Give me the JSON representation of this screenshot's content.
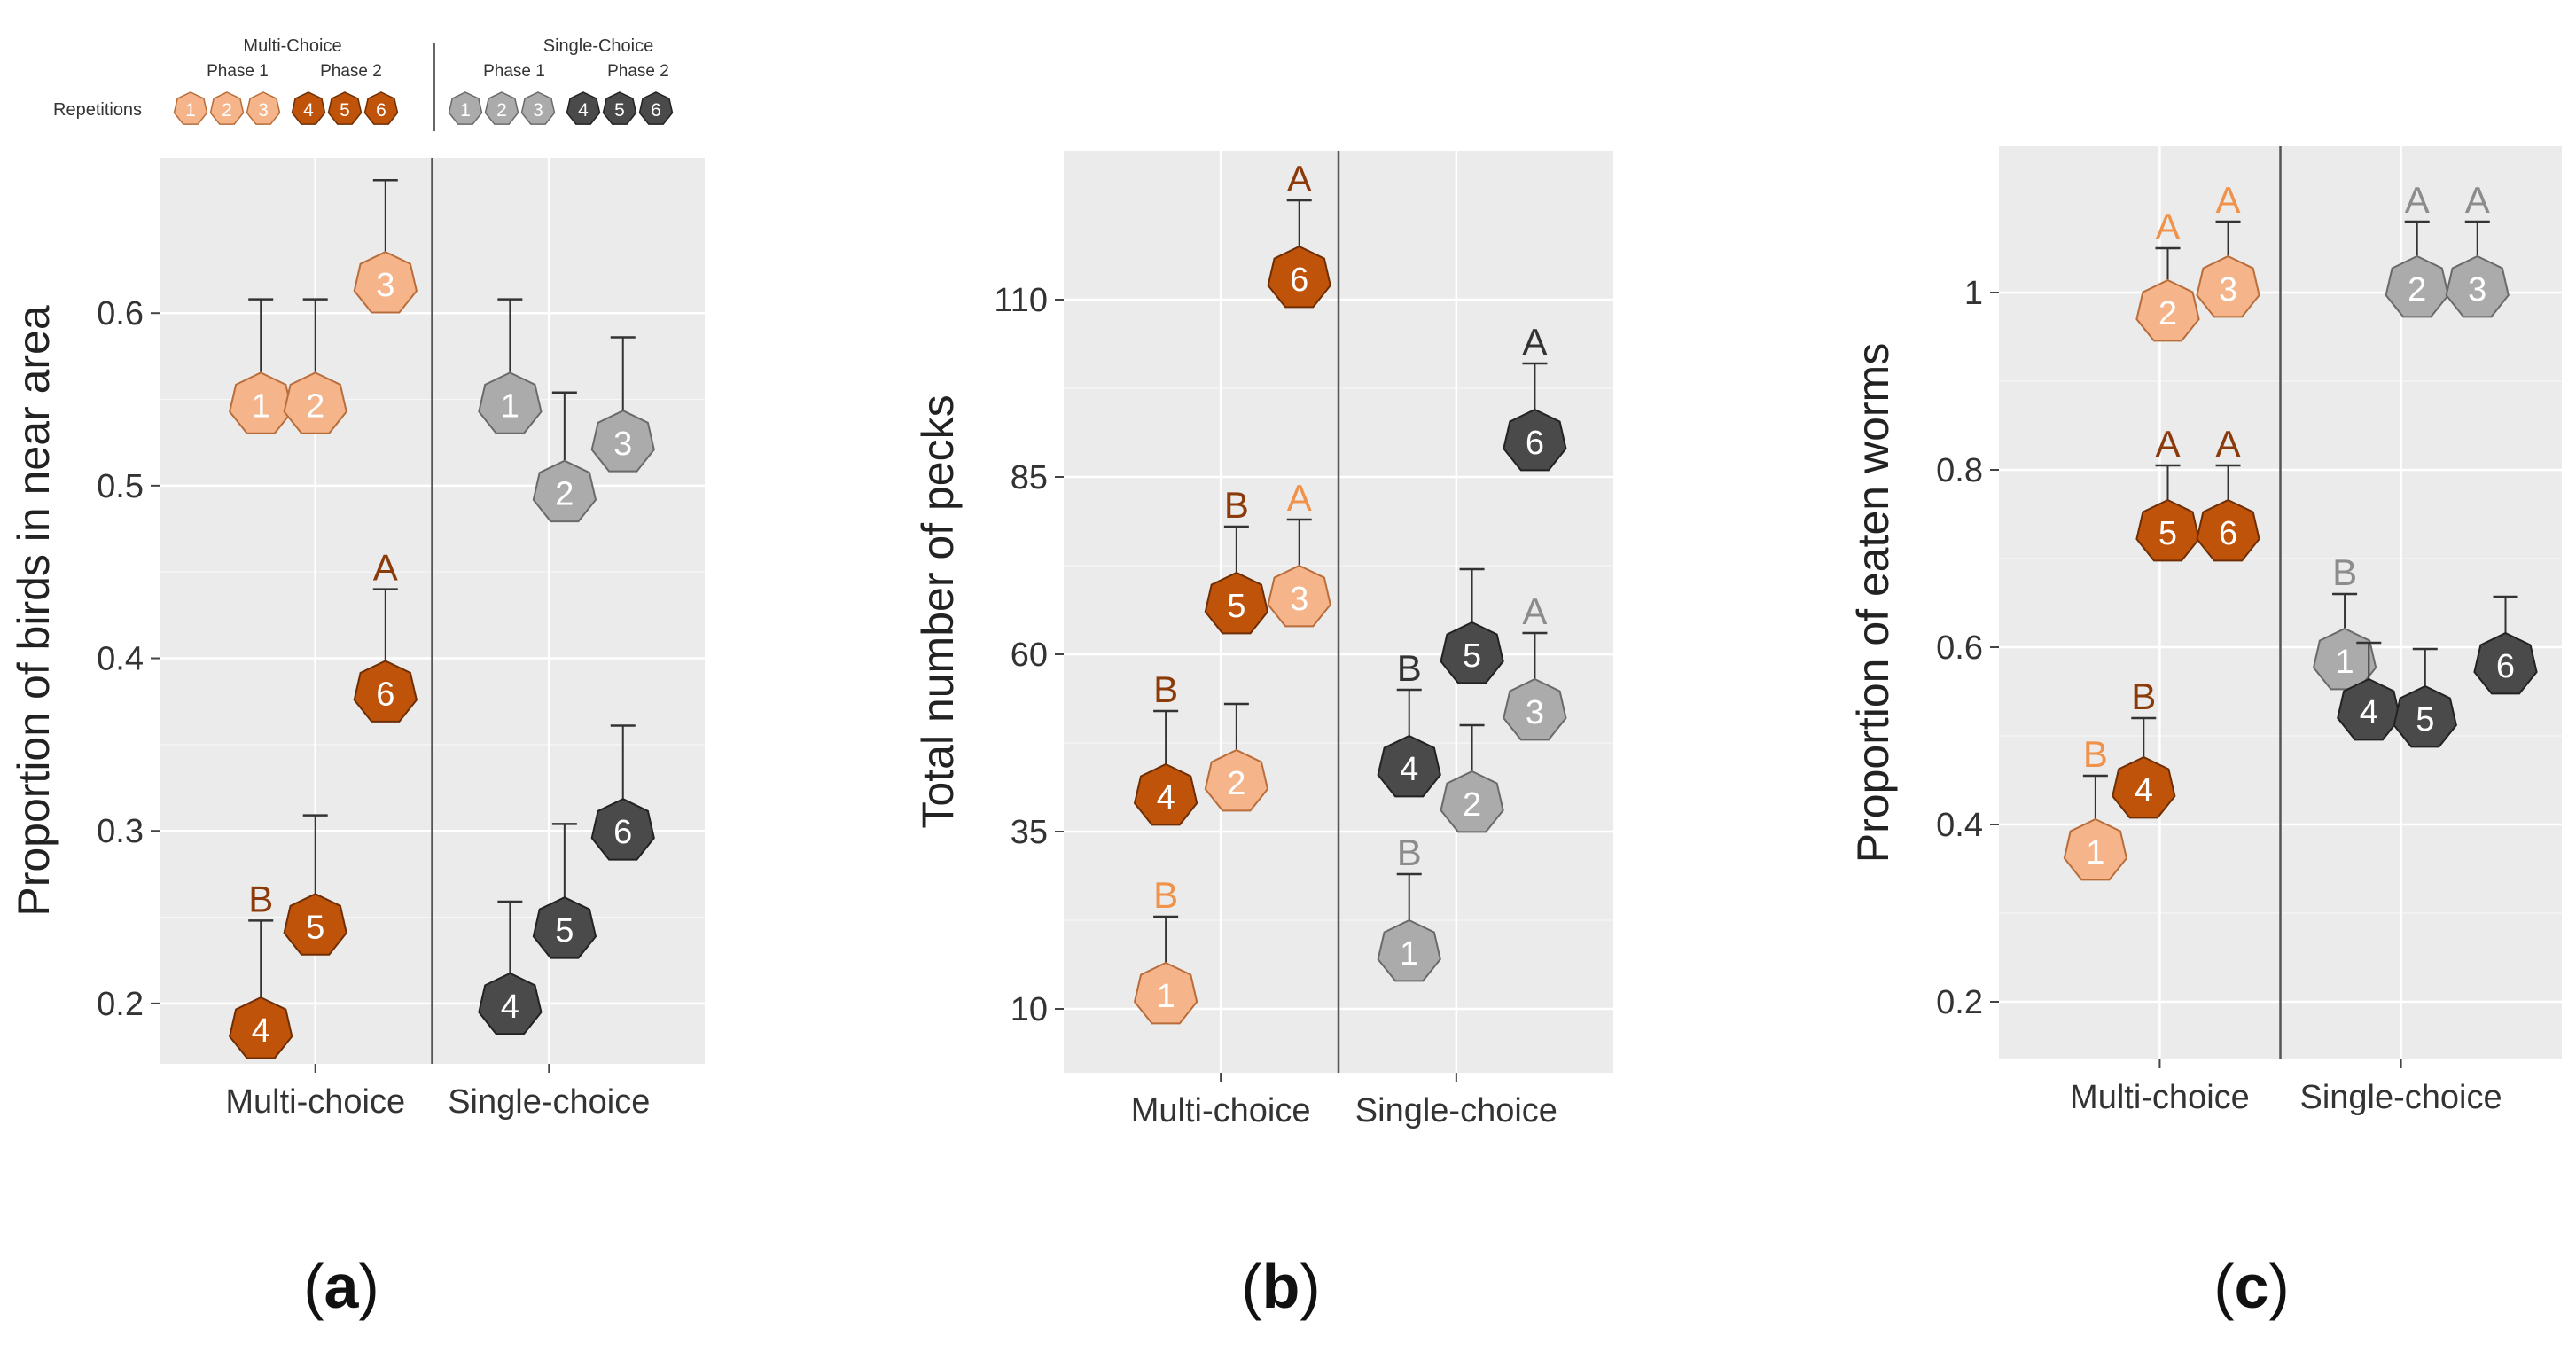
{
  "legend": {
    "row_label": "Repetitions",
    "groups": [
      {
        "title": "Multi-Choice",
        "phases": [
          "Phase 1",
          "Phase 2"
        ],
        "reps": [
          "1",
          "2",
          "3",
          "4",
          "5",
          "6"
        ]
      },
      {
        "title": "Single-Choice",
        "phases": [
          "Phase 1",
          "Phase 2"
        ],
        "reps": [
          "1",
          "2",
          "3",
          "4",
          "5",
          "6"
        ]
      }
    ]
  },
  "colors": {
    "multi_phase1_fill": "#F5B48A",
    "multi_phase2_fill": "#C0530A",
    "single_phase1_fill": "#ABABAB",
    "single_phase2_fill": "#4A4A4A",
    "multi_phase1_letter": "#F0924A",
    "multi_phase2_letter": "#8B3A0A",
    "single_phase1_letter": "#8C8C8C",
    "single_phase2_letter": "#333333",
    "panel_bg": "#EBEBEB",
    "grid": "#FFFFFF"
  },
  "chart_data": [
    {
      "type": "scatter",
      "caption_paren_open": "(",
      "caption_letter": "a",
      "caption_paren_close": ")",
      "ylabel": "Proportion of birds in near area",
      "xlabel": "",
      "categories": [
        "Multi-choice",
        "Single-choice"
      ],
      "ylim": [
        0.165,
        0.69
      ],
      "yticks": [
        0.2,
        0.3,
        0.4,
        0.5,
        0.6
      ],
      "ytick_labels": [
        "0.2",
        "0.3",
        "0.4",
        "0.5",
        "0.6"
      ],
      "grid": true,
      "points": [
        {
          "group": "Multi-choice",
          "rep": "1",
          "x": 1.3,
          "y": 0.547,
          "err_top": 0.608,
          "letter": ""
        },
        {
          "group": "Multi-choice",
          "rep": "2",
          "x": 2.0,
          "y": 0.547,
          "err_top": 0.608,
          "letter": ""
        },
        {
          "group": "Multi-choice",
          "rep": "3",
          "x": 2.9,
          "y": 0.617,
          "err_top": 0.677,
          "letter": ""
        },
        {
          "group": "Multi-choice",
          "rep": "4",
          "x": 1.3,
          "y": 0.185,
          "err_top": 0.248,
          "letter": "B"
        },
        {
          "group": "Multi-choice",
          "rep": "5",
          "x": 2.0,
          "y": 0.245,
          "err_top": 0.309,
          "letter": ""
        },
        {
          "group": "Multi-choice",
          "rep": "6",
          "x": 2.9,
          "y": 0.38,
          "err_top": 0.44,
          "letter": "A"
        },
        {
          "group": "Single-choice",
          "rep": "1",
          "x": 4.5,
          "y": 0.547,
          "err_top": 0.608,
          "letter": ""
        },
        {
          "group": "Single-choice",
          "rep": "2",
          "x": 5.2,
          "y": 0.496,
          "err_top": 0.554,
          "letter": ""
        },
        {
          "group": "Single-choice",
          "rep": "3",
          "x": 5.95,
          "y": 0.525,
          "err_top": 0.586,
          "letter": ""
        },
        {
          "group": "Single-choice",
          "rep": "4",
          "x": 4.5,
          "y": 0.199,
          "err_top": 0.259,
          "letter": ""
        },
        {
          "group": "Single-choice",
          "rep": "5",
          "x": 5.2,
          "y": 0.243,
          "err_top": 0.304,
          "letter": ""
        },
        {
          "group": "Single-choice",
          "rep": "6",
          "x": 5.95,
          "y": 0.3,
          "err_top": 0.361,
          "letter": ""
        }
      ]
    },
    {
      "type": "scatter",
      "caption_paren_open": "(",
      "caption_letter": "b",
      "caption_paren_close": ")",
      "ylabel": "Total number of pecks",
      "xlabel": "",
      "categories": [
        "Multi-choice",
        "Single-choice"
      ],
      "ylim": [
        1,
        131
      ],
      "yticks": [
        10,
        35,
        60,
        85,
        110
      ],
      "ytick_labels": [
        "10",
        "35",
        "60",
        "85",
        "110"
      ],
      "grid": true,
      "points": [
        {
          "group": "Multi-choice",
          "rep": "1",
          "x": 1.3,
          "y": 12,
          "err_top": 23,
          "letter": "B"
        },
        {
          "group": "Multi-choice",
          "rep": "2",
          "x": 2.2,
          "y": 42,
          "err_top": 53,
          "letter": ""
        },
        {
          "group": "Multi-choice",
          "rep": "3",
          "x": 3.0,
          "y": 68,
          "err_top": 79,
          "letter": "A"
        },
        {
          "group": "Multi-choice",
          "rep": "4",
          "x": 1.3,
          "y": 40,
          "err_top": 52,
          "letter": "B"
        },
        {
          "group": "Multi-choice",
          "rep": "5",
          "x": 2.2,
          "y": 67,
          "err_top": 78,
          "letter": "B"
        },
        {
          "group": "Multi-choice",
          "rep": "6",
          "x": 3.0,
          "y": 113,
          "err_top": 124,
          "letter": "A"
        },
        {
          "group": "Single-choice",
          "rep": "1",
          "x": 4.4,
          "y": 18,
          "err_top": 29,
          "letter": "B"
        },
        {
          "group": "Single-choice",
          "rep": "2",
          "x": 5.2,
          "y": 39,
          "err_top": 50,
          "letter": ""
        },
        {
          "group": "Single-choice",
          "rep": "3",
          "x": 6.0,
          "y": 52,
          "err_top": 63,
          "letter": "A"
        },
        {
          "group": "Single-choice",
          "rep": "4",
          "x": 4.4,
          "y": 44,
          "err_top": 55,
          "letter": "B"
        },
        {
          "group": "Single-choice",
          "rep": "5",
          "x": 5.2,
          "y": 60,
          "err_top": 72,
          "letter": ""
        },
        {
          "group": "Single-choice",
          "rep": "6",
          "x": 6.0,
          "y": 90,
          "err_top": 101,
          "letter": "A"
        }
      ]
    },
    {
      "type": "scatter",
      "caption_paren_open": "(",
      "caption_letter": "c",
      "caption_paren_close": ")",
      "ylabel": "Proportion of eaten worms",
      "xlabel": "",
      "categories": [
        "Multi-choice",
        "Single-choice"
      ],
      "ylim": [
        0.135,
        1.165
      ],
      "yticks": [
        0.2,
        0.4,
        0.6,
        0.8,
        1.0
      ],
      "ytick_labels": [
        "0.2",
        "0.4",
        "0.6",
        "0.8",
        "1"
      ],
      "grid": true,
      "points": [
        {
          "group": "Multi-choice",
          "rep": "1",
          "x": 1.2,
          "y": 0.37,
          "err_top": 0.455,
          "letter": "B"
        },
        {
          "group": "Multi-choice",
          "rep": "2",
          "x": 2.1,
          "y": 0.978,
          "err_top": 1.05,
          "letter": "A"
        },
        {
          "group": "Multi-choice",
          "rep": "3",
          "x": 2.85,
          "y": 1.005,
          "err_top": 1.08,
          "letter": "A"
        },
        {
          "group": "Multi-choice",
          "rep": "4",
          "x": 1.8,
          "y": 0.44,
          "err_top": 0.52,
          "letter": "B"
        },
        {
          "group": "Multi-choice",
          "rep": "5",
          "x": 2.1,
          "y": 0.73,
          "err_top": 0.805,
          "letter": "A"
        },
        {
          "group": "Multi-choice",
          "rep": "6",
          "x": 2.85,
          "y": 0.73,
          "err_top": 0.805,
          "letter": "A"
        },
        {
          "group": "Single-choice",
          "rep": "1",
          "x": 4.3,
          "y": 0.585,
          "err_top": 0.66,
          "letter": "B"
        },
        {
          "group": "Single-choice",
          "rep": "2",
          "x": 5.2,
          "y": 1.005,
          "err_top": 1.08,
          "letter": "A"
        },
        {
          "group": "Single-choice",
          "rep": "3",
          "x": 5.95,
          "y": 1.005,
          "err_top": 1.08,
          "letter": "A"
        },
        {
          "group": "Single-choice",
          "rep": "4",
          "x": 4.6,
          "y": 0.528,
          "err_top": 0.605,
          "letter": ""
        },
        {
          "group": "Single-choice",
          "rep": "5",
          "x": 5.3,
          "y": 0.52,
          "err_top": 0.598,
          "letter": ""
        },
        {
          "group": "Single-choice",
          "rep": "6",
          "x": 6.3,
          "y": 0.58,
          "err_top": 0.657,
          "letter": ""
        }
      ]
    }
  ]
}
